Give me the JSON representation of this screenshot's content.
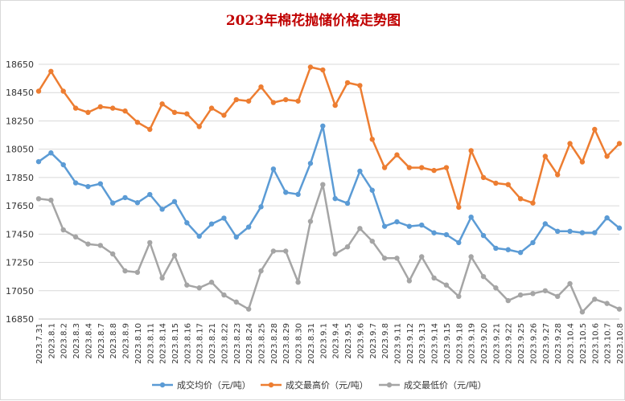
{
  "chart_data": {
    "type": "line",
    "title": "2023年棉花抛储价格走势图",
    "xlabel": "",
    "ylabel": "",
    "ylim": [
      16850,
      18650
    ],
    "yticks": [
      16850,
      17050,
      17250,
      17450,
      17650,
      17850,
      18050,
      18250,
      18450,
      18650
    ],
    "grid": true,
    "legend_position": "bottom",
    "categories": [
      "2023.7.31",
      "2023.8.1",
      "2023.8.2",
      "2023.8.3",
      "2023.8.4",
      "2023.8.7",
      "2023.8.8",
      "2023.8.9",
      "2023.8.10",
      "2023.8.11",
      "2023.8.14",
      "2023.8.15",
      "2023.8.16",
      "2023.8.17",
      "2023.8.21",
      "2023.8.22",
      "2023.8.23",
      "2023.8.24",
      "2023.8.25",
      "2023.8.28",
      "2023.8.29",
      "2023.8.30",
      "2023.8.31",
      "2023.9.1",
      "2023.9.4",
      "2023.9.5",
      "2023.9.6",
      "2023.9.7",
      "2023.9.8",
      "2023.9.11",
      "2023.9.12",
      "2023.9.13",
      "2023.9.14",
      "2023.9.15",
      "2023.9.18",
      "2023.9.19",
      "2023.9.20",
      "2023.9.21",
      "2023.9.22",
      "2023.9.25",
      "2023.9.26",
      "2023.9.27",
      "2023.9.28",
      "2023.10.4",
      "2023.10.5",
      "2023.10.6",
      "2023.10.7",
      "2023.10.8"
    ],
    "series": [
      {
        "name": "成交均价（元/吨）",
        "color": "#5b9bd5",
        "values": [
          17962,
          18024,
          17940,
          17812,
          17786,
          17806,
          17670,
          17708,
          17672,
          17730,
          17626,
          17680,
          17530,
          17435,
          17522,
          17563,
          17429,
          17500,
          17643,
          17910,
          17745,
          17731,
          17950,
          18214,
          17701,
          17668,
          17895,
          17760,
          17505,
          17537,
          17505,
          17514,
          17459,
          17446,
          17390,
          17570,
          17440,
          17350,
          17340,
          17320,
          17390,
          17523,
          17470,
          17470,
          17460,
          17460,
          17565,
          17493
        ]
      },
      {
        "name": "成交最高价（元/吨）",
        "color": "#ed7d31",
        "values": [
          18460,
          18600,
          18460,
          18340,
          18310,
          18350,
          18340,
          18320,
          18240,
          18190,
          18370,
          18310,
          18300,
          18210,
          18340,
          18290,
          18400,
          18390,
          18490,
          18380,
          18400,
          18390,
          18630,
          18610,
          18360,
          18520,
          18500,
          18120,
          17920,
          18010,
          17920,
          17920,
          17900,
          17920,
          17640,
          18040,
          17850,
          17810,
          17800,
          17700,
          17670,
          18000,
          17870,
          18090,
          17960,
          18190,
          18000,
          18090
        ]
      },
      {
        "name": "成交最低价（元/吨）",
        "color": "#a5a5a5",
        "values": [
          17700,
          17690,
          17480,
          17430,
          17380,
          17370,
          17310,
          17190,
          17180,
          17390,
          17140,
          17300,
          17090,
          17070,
          17110,
          17020,
          16970,
          16920,
          17190,
          17330,
          17330,
          17110,
          17540,
          17800,
          17310,
          17360,
          17490,
          17400,
          17280,
          17280,
          17120,
          17290,
          17140,
          17090,
          17010,
          17290,
          17150,
          17070,
          16980,
          17020,
          17030,
          17050,
          17010,
          17100,
          16900,
          16990,
          16960,
          16920
        ]
      }
    ]
  }
}
